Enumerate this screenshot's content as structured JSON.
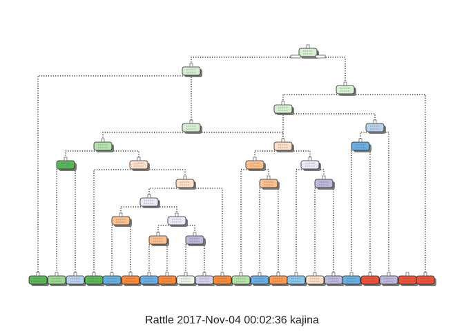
{
  "caption": "Rattle 2017-Nov-04 00:02:36 kajina",
  "colors": {
    "green_light": "#d6efd0",
    "green": "#9bd68f",
    "green_dark": "#5db55a",
    "blue": "#6aaedf",
    "blue_light": "#b8d1ec",
    "orange": "#f58a3c",
    "orange_light": "#fbc08f",
    "peach": "#fde0cb",
    "lavender": "#d4d2ea",
    "lavender_mid": "#bdb8dc",
    "red": "#e8533a",
    "edge": "#000000"
  },
  "tree": {
    "root": {
      "name": "node-1",
      "fill": "#d6efd0"
    },
    "internal_nodes": [
      {
        "name": "node-2",
        "fill": "#d6efd0"
      },
      {
        "name": "node-3",
        "fill": "#d6efd0"
      },
      {
        "name": "node-6",
        "fill": "#d6efd0"
      },
      {
        "name": "node-7",
        "fill": "#b8d1ec"
      },
      {
        "name": "node-12",
        "fill": "#d6efd0"
      },
      {
        "name": "node-13",
        "fill": "#fde0cb"
      },
      {
        "name": "node-14",
        "fill": "#6aaedf"
      },
      {
        "name": "node-24",
        "fill": "#b6e2ac"
      },
      {
        "name": "node-25",
        "fill": "#fde0cb"
      },
      {
        "name": "node-26",
        "fill": "#fbc08f"
      },
      {
        "name": "node-27",
        "fill": "#eceaf6"
      },
      {
        "name": "node-48",
        "fill": "#5db55a"
      },
      {
        "name": "node-51",
        "fill": "#fde0cb"
      },
      {
        "name": "node-53",
        "fill": "#fbc08f"
      },
      {
        "name": "node-55",
        "fill": "#bdb8dc"
      },
      {
        "name": "node-102",
        "fill": "#eceaf6"
      },
      {
        "name": "node-204",
        "fill": "#fbc08f"
      },
      {
        "name": "node-205",
        "fill": "#eceaf6"
      },
      {
        "name": "node-410",
        "fill": "#fbc08f"
      },
      {
        "name": "node-411",
        "fill": "#bdb8dc"
      }
    ],
    "leaves": [
      {
        "name": "leaf-1",
        "fill": "#5db55a"
      },
      {
        "name": "leaf-2",
        "fill": "#9bd68f"
      },
      {
        "name": "leaf-3",
        "fill": "#b8d1ec"
      },
      {
        "name": "leaf-4",
        "fill": "#5db55a"
      },
      {
        "name": "leaf-5",
        "fill": "#6aaedf"
      },
      {
        "name": "leaf-6",
        "fill": "#f58a3c"
      },
      {
        "name": "leaf-7",
        "fill": "#6aaedf"
      },
      {
        "name": "leaf-8",
        "fill": "#f58a3c"
      },
      {
        "name": "leaf-9",
        "fill": "#eef5e8"
      },
      {
        "name": "leaf-10",
        "fill": "#d4d2ea"
      },
      {
        "name": "leaf-11",
        "fill": "#f58a3c"
      },
      {
        "name": "leaf-12",
        "fill": "#b6e2ac"
      },
      {
        "name": "leaf-13",
        "fill": "#6aaedf"
      },
      {
        "name": "leaf-14",
        "fill": "#f89b55"
      },
      {
        "name": "leaf-15",
        "fill": "#8cc4ea"
      },
      {
        "name": "leaf-16",
        "fill": "#fde0cb"
      },
      {
        "name": "leaf-17",
        "fill": "#bdb8dc"
      },
      {
        "name": "leaf-18",
        "fill": "#6aaedf"
      },
      {
        "name": "leaf-19",
        "fill": "#e8533a"
      },
      {
        "name": "leaf-20",
        "fill": "#bdb8dc"
      },
      {
        "name": "leaf-21",
        "fill": "#e8533a"
      },
      {
        "name": "leaf-22",
        "fill": "#e8533a"
      }
    ]
  }
}
